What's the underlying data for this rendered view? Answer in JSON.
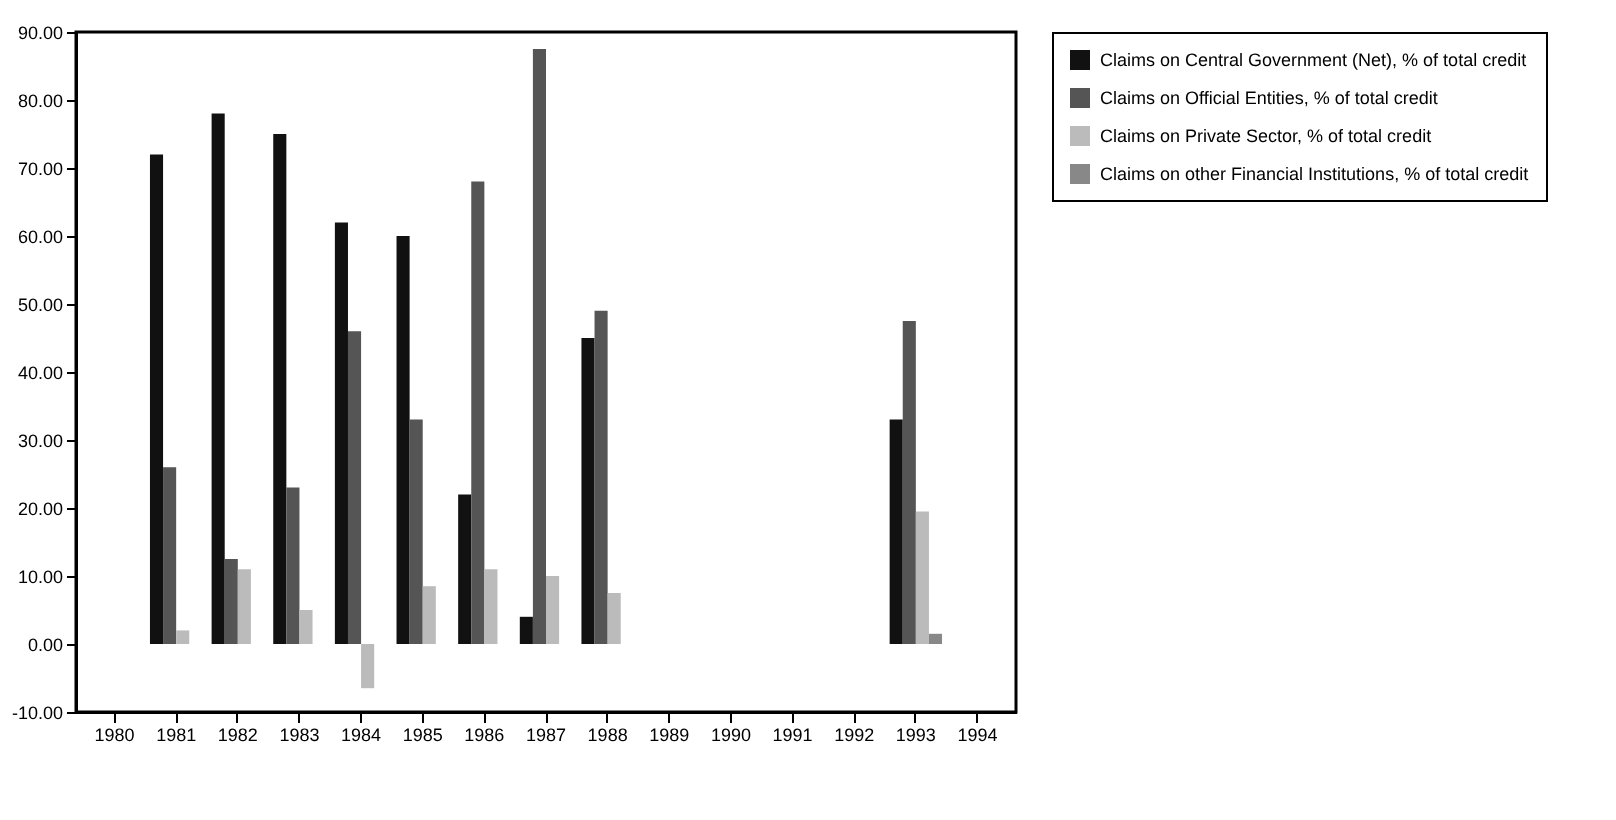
{
  "chart_data": {
    "type": "bar",
    "categories": [
      "1980",
      "1981",
      "1982",
      "1983",
      "1984",
      "1985",
      "1986",
      "1987",
      "1988",
      "1989",
      "1990",
      "1991",
      "1992",
      "1993",
      "1994"
    ],
    "series": [
      {
        "name": "Claims on Central Government (Net), % of total credit",
        "color": "#111111",
        "values": [
          0,
          72,
          78,
          75,
          62,
          60,
          22,
          4,
          45,
          0,
          0,
          0,
          0,
          33,
          0
        ]
      },
      {
        "name": "Claims on Official Entities, % of total credit",
        "color": "#555555",
        "values": [
          0,
          26,
          12.5,
          23,
          46,
          33,
          68,
          87.5,
          49,
          0,
          0,
          0,
          0,
          47.5,
          0
        ]
      },
      {
        "name": "Claims on Private Sector, % of total credit",
        "color": "#bbbbbb",
        "values": [
          0,
          2,
          11,
          5,
          -6.5,
          8.5,
          11,
          10,
          7.5,
          0,
          0,
          0,
          0,
          19.5,
          0
        ]
      },
      {
        "name": "Claims on other Financial Institutions, % of total credit",
        "color": "#888888",
        "values": [
          0,
          0,
          0,
          0,
          0,
          0,
          0,
          0,
          0,
          0,
          0,
          0,
          0,
          1.5,
          0
        ]
      }
    ],
    "ylim": [
      -10,
      90
    ],
    "yticks": [
      {
        "value": -10,
        "label": "-10.00"
      },
      {
        "value": 0,
        "label": "0.00"
      },
      {
        "value": 10,
        "label": "10.00"
      },
      {
        "value": 20,
        "label": "20.00"
      },
      {
        "value": 30,
        "label": "30.00"
      },
      {
        "value": 40,
        "label": "40.00"
      },
      {
        "value": 50,
        "label": "50.00"
      },
      {
        "value": 60,
        "label": "60.00"
      },
      {
        "value": 70,
        "label": "70.00"
      },
      {
        "value": 80,
        "label": "80.00"
      },
      {
        "value": 90,
        "label": "90.00"
      }
    ],
    "grid": false,
    "legend": "right"
  }
}
